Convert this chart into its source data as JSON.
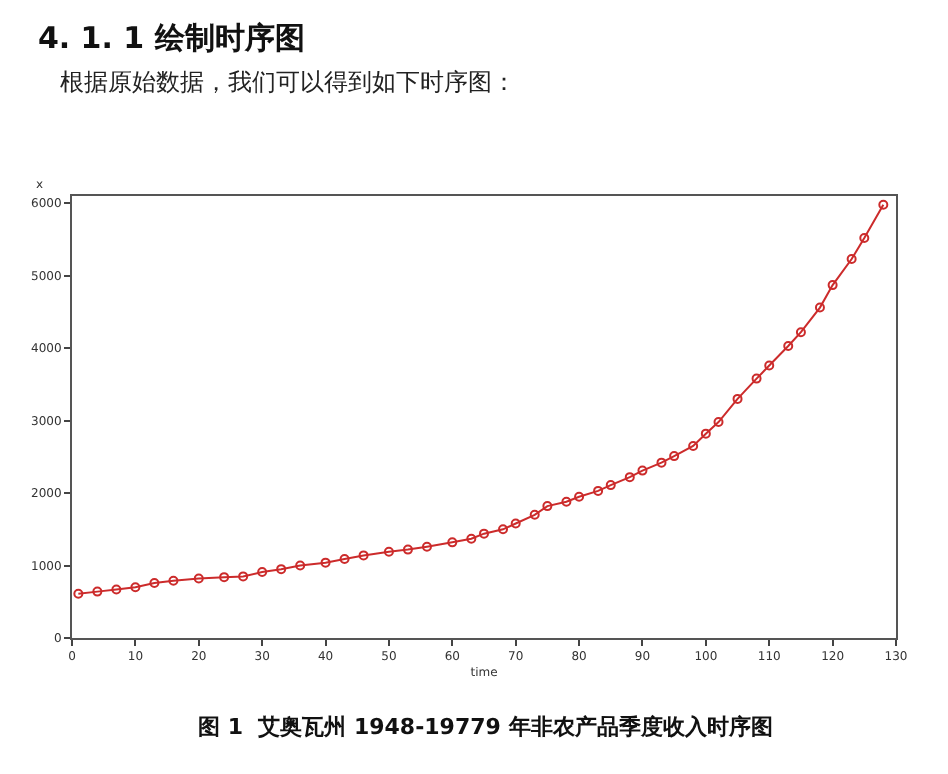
{
  "chart_data": {
    "type": "line",
    "title": "4. 1. 1 绘制时序图",
    "subtitle": "根据原始数据，我们可以得到如下时序图：",
    "xlabel": "time",
    "ylabel": "x",
    "annotations": [
      "图 1  艾奥瓦州 1948-19779 年非农产品季度收入时序图"
    ],
    "x": [
      1,
      4,
      7,
      10,
      13,
      16,
      20,
      24,
      27,
      30,
      33,
      36,
      40,
      43,
      46,
      50,
      53,
      56,
      60,
      63,
      65,
      68,
      70,
      73,
      75,
      78,
      80,
      83,
      85,
      88,
      90,
      93,
      95,
      98,
      100,
      102,
      105,
      108,
      110,
      113,
      115,
      118,
      120,
      123,
      125,
      128
    ],
    "series": [
      {
        "color": "#cc2b2b",
        "values": [
          610,
          640,
          670,
          700,
          760,
          790,
          820,
          840,
          850,
          910,
          950,
          1000,
          1040,
          1090,
          1140,
          1190,
          1220,
          1260,
          1320,
          1370,
          1440,
          1500,
          1580,
          1700,
          1820,
          1880,
          1950,
          2030,
          2110,
          2220,
          2310,
          2420,
          2510,
          2650,
          2820,
          2980,
          3300,
          3580,
          3760,
          4030,
          4220,
          4560,
          4870,
          5230,
          5520,
          5980
        ]
      }
    ],
    "xlim": [
      0,
      130
    ],
    "xticks": [
      0,
      10,
      20,
      30,
      40,
      50,
      60,
      70,
      80,
      90,
      100,
      110,
      120,
      130
    ],
    "ylim": [
      0,
      6100
    ],
    "yticks": [
      0,
      1000,
      2000,
      3000,
      4000,
      5000,
      6000
    ],
    "grid": false,
    "marker": "circle",
    "line_style": "solid"
  }
}
